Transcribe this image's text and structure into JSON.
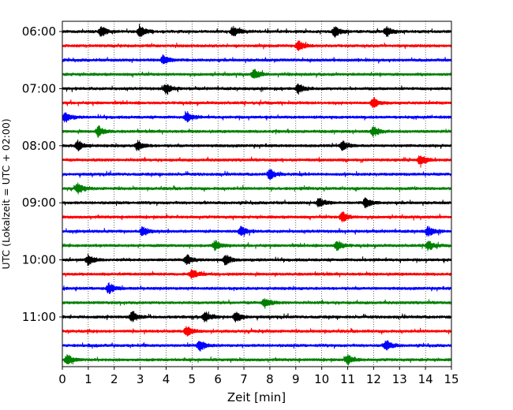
{
  "chart_data": {
    "type": "line",
    "title": "",
    "xlabel": "Zeit  [min]",
    "ylabel": "UTC (Lokalzeit = UTC + 02:00)",
    "xlim": [
      0,
      15
    ],
    "x_ticks": [
      "0",
      "1",
      "2",
      "3",
      "4",
      "5",
      "6",
      "7",
      "8",
      "9",
      "10",
      "11",
      "12",
      "13",
      "14",
      "15"
    ],
    "y_tick_labels": [
      "06:00",
      "07:00",
      "08:00",
      "09:00",
      "10:00",
      "11:00"
    ],
    "grid": "vertical dotted lines at each minute",
    "trace_interval_minutes": 15,
    "color_cycle": [
      "#000000",
      "#ff0000",
      "#0000ff",
      "#008000"
    ],
    "traces": [
      {
        "start": "06:00",
        "color": "#000000",
        "events_min": [
          1.5,
          3.0,
          6.6,
          10.5,
          12.5
        ]
      },
      {
        "start": "06:15",
        "color": "#ff0000",
        "events_min": [
          9.1
        ]
      },
      {
        "start": "06:30",
        "color": "#0000ff",
        "events_min": [
          3.9
        ]
      },
      {
        "start": "06:45",
        "color": "#008000",
        "events_min": [
          7.4
        ]
      },
      {
        "start": "07:00",
        "color": "#000000",
        "events_min": [
          4.0,
          9.1
        ]
      },
      {
        "start": "07:15",
        "color": "#ff0000",
        "events_min": [
          12.0
        ]
      },
      {
        "start": "07:30",
        "color": "#0000ff",
        "events_min": [
          0.1,
          4.8
        ]
      },
      {
        "start": "07:45",
        "color": "#008000",
        "events_min": [
          1.4,
          12.0
        ]
      },
      {
        "start": "08:00",
        "color": "#000000",
        "events_min": [
          0.6,
          2.9,
          10.8
        ]
      },
      {
        "start": "08:15",
        "color": "#ff0000",
        "events_min": [
          13.8
        ]
      },
      {
        "start": "08:30",
        "color": "#0000ff",
        "events_min": [
          8.0
        ]
      },
      {
        "start": "08:45",
        "color": "#008000",
        "events_min": [
          0.6
        ]
      },
      {
        "start": "09:00",
        "color": "#000000",
        "events_min": [
          9.9,
          11.7
        ]
      },
      {
        "start": "09:15",
        "color": "#ff0000",
        "events_min": [
          10.8
        ]
      },
      {
        "start": "09:30",
        "color": "#0000ff",
        "events_min": [
          3.1,
          6.9,
          14.1
        ]
      },
      {
        "start": "09:45",
        "color": "#008000",
        "events_min": [
          5.9,
          10.6,
          14.1
        ]
      },
      {
        "start": "10:00",
        "color": "#000000",
        "events_min": [
          1.0,
          4.8,
          6.3
        ]
      },
      {
        "start": "10:15",
        "color": "#ff0000",
        "events_min": [
          5.0
        ]
      },
      {
        "start": "10:30",
        "color": "#0000ff",
        "events_min": [
          1.8
        ]
      },
      {
        "start": "10:45",
        "color": "#008000",
        "events_min": [
          7.8
        ]
      },
      {
        "start": "11:00",
        "color": "#000000",
        "events_min": [
          2.7,
          5.5,
          6.7
        ]
      },
      {
        "start": "11:15",
        "color": "#ff0000",
        "events_min": [
          4.8
        ]
      },
      {
        "start": "11:30",
        "color": "#0000ff",
        "events_min": [
          5.3,
          12.5
        ]
      },
      {
        "start": "11:45",
        "color": "#008000",
        "events_min": [
          0.2,
          11.0
        ]
      }
    ]
  }
}
